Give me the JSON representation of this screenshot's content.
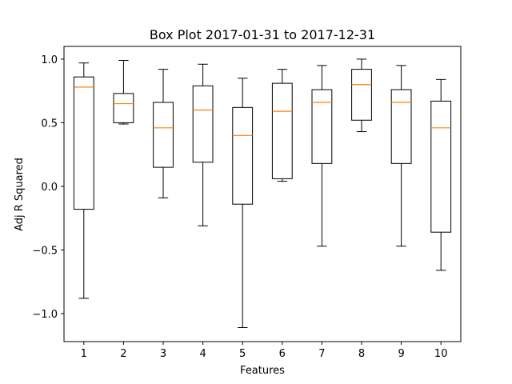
{
  "chart_data": {
    "type": "box",
    "title": "Box Plot 2017-01-31 to 2017-12-31",
    "xlabel": "Features",
    "ylabel": "Adj R Squared",
    "ylim": [
      -1.22,
      1.1
    ],
    "yticks": [
      -1.0,
      -0.5,
      0.0,
      0.5,
      1.0
    ],
    "ytick_labels": [
      "−1.0",
      "−0.5",
      "0.0",
      "0.5",
      "1.0"
    ],
    "categories": [
      "1",
      "2",
      "3",
      "4",
      "5",
      "6",
      "7",
      "8",
      "9",
      "10"
    ],
    "boxes": [
      {
        "whisker_low": -0.88,
        "q1": -0.18,
        "median": 0.78,
        "q3": 0.86,
        "whisker_high": 0.97
      },
      {
        "whisker_low": 0.49,
        "q1": 0.5,
        "median": 0.65,
        "q3": 0.73,
        "whisker_high": 0.99
      },
      {
        "whisker_low": -0.09,
        "q1": 0.15,
        "median": 0.46,
        "q3": 0.66,
        "whisker_high": 0.92
      },
      {
        "whisker_low": -0.31,
        "q1": 0.19,
        "median": 0.6,
        "q3": 0.79,
        "whisker_high": 0.96
      },
      {
        "whisker_low": -1.11,
        "q1": -0.14,
        "median": 0.4,
        "q3": 0.62,
        "whisker_high": 0.85
      },
      {
        "whisker_low": 0.04,
        "q1": 0.06,
        "median": 0.59,
        "q3": 0.81,
        "whisker_high": 0.92
      },
      {
        "whisker_low": -0.47,
        "q1": 0.18,
        "median": 0.66,
        "q3": 0.76,
        "whisker_high": 0.95
      },
      {
        "whisker_low": 0.43,
        "q1": 0.52,
        "median": 0.8,
        "q3": 0.92,
        "whisker_high": 1.0
      },
      {
        "whisker_low": -0.47,
        "q1": 0.18,
        "median": 0.66,
        "q3": 0.76,
        "whisker_high": 0.95
      },
      {
        "whisker_low": -0.66,
        "q1": -0.36,
        "median": 0.46,
        "q3": 0.67,
        "whisker_high": 0.84
      }
    ],
    "median_color": "#ff7f0e",
    "box_color": "#000000",
    "grid": false
  }
}
